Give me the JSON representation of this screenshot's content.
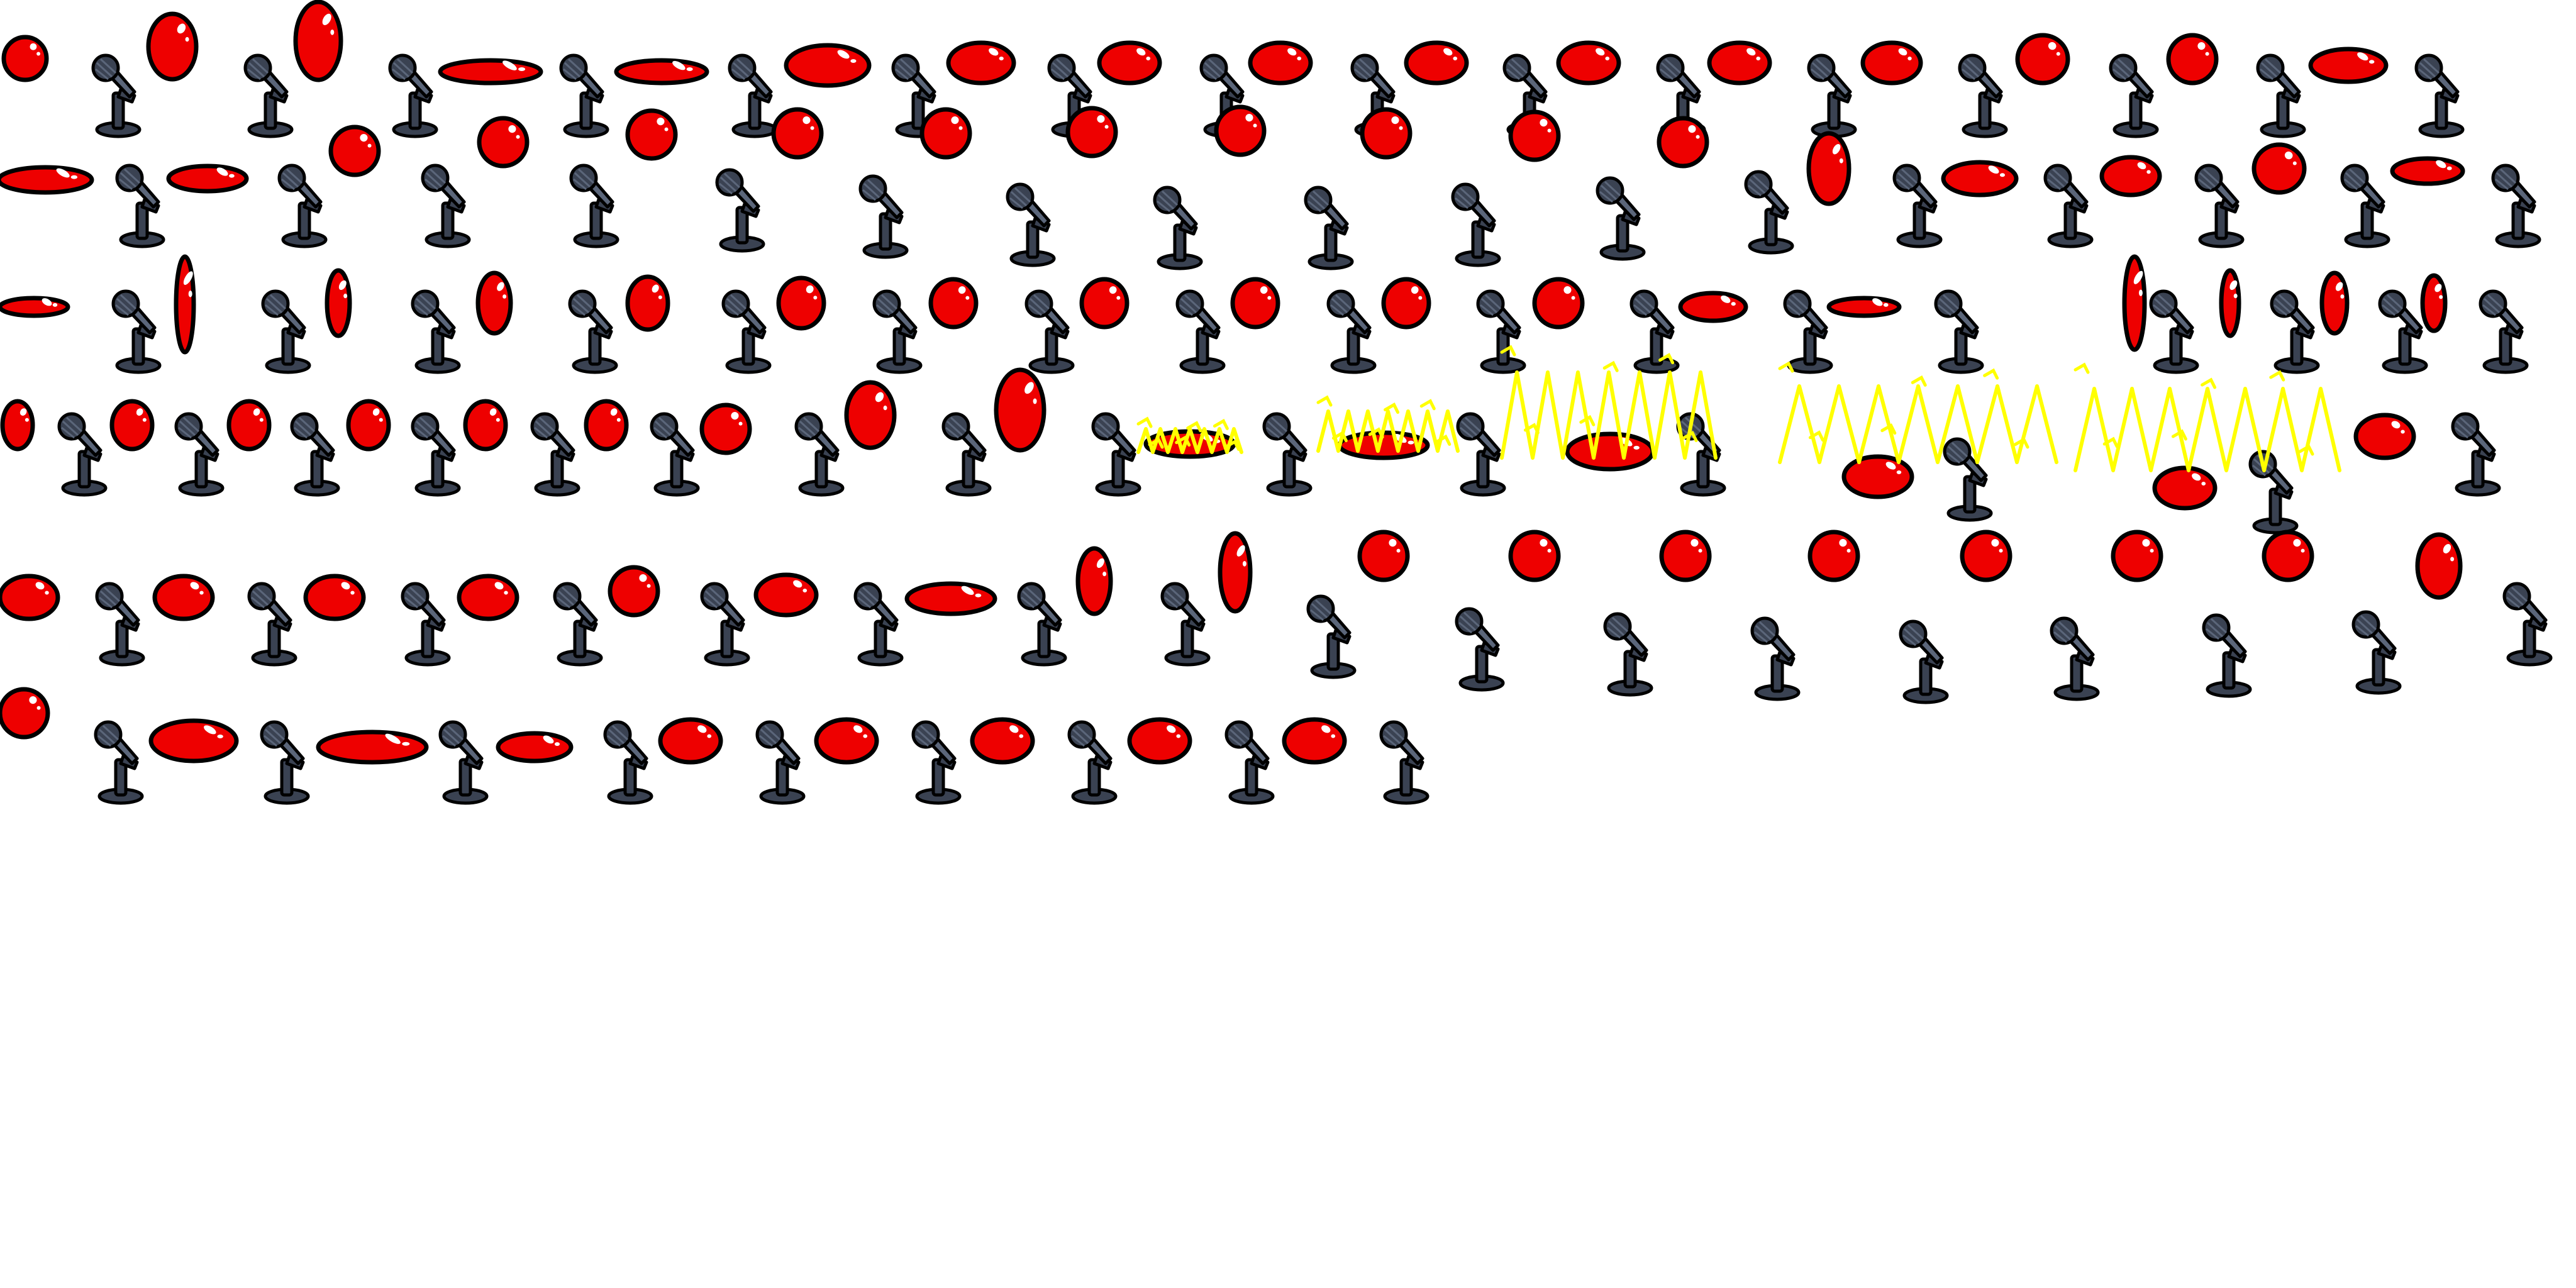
{
  "sheet": {
    "background": "#ffffff",
    "colors": {
      "ball": "#ee0000",
      "outline": "#000000",
      "highlight": "#ffffff",
      "mic_body": "#3a4252",
      "mic_light": "#5b667a",
      "spark": "#ffff00"
    },
    "rows": [
      {
        "frames": [
          {
            "state": "idle"
          },
          {
            "state": "stretch"
          },
          {
            "state": "stretch"
          },
          {
            "state": "squash"
          },
          {
            "state": "squash"
          },
          {
            "state": "idle"
          },
          {
            "state": "idle"
          },
          {
            "state": "idle"
          },
          {
            "state": "idle"
          },
          {
            "state": "idle"
          },
          {
            "state": "idle"
          },
          {
            "state": "idle"
          },
          {
            "state": "idle"
          },
          {
            "state": "idle"
          },
          {
            "state": "idle"
          },
          {
            "state": "idle"
          }
        ]
      },
      {
        "frames": [
          {
            "state": "squash"
          },
          {
            "state": "squash"
          },
          {
            "state": "jump"
          },
          {
            "state": "jump"
          },
          {
            "state": "jump"
          },
          {
            "state": "jump"
          },
          {
            "state": "jump"
          },
          {
            "state": "jump"
          },
          {
            "state": "jump"
          },
          {
            "state": "jump"
          },
          {
            "state": "jump"
          },
          {
            "state": "jump"
          },
          {
            "state": "stretch"
          },
          {
            "state": "squash"
          },
          {
            "state": "idle"
          },
          {
            "state": "idle"
          },
          {
            "state": "squash"
          }
        ]
      },
      {
        "frames": [
          {
            "state": "squash"
          },
          {
            "state": "spin"
          },
          {
            "state": "spin"
          },
          {
            "state": "spin"
          },
          {
            "state": "spin"
          },
          {
            "state": "idle"
          },
          {
            "state": "idle"
          },
          {
            "state": "idle"
          },
          {
            "state": "idle"
          },
          {
            "state": "idle"
          },
          {
            "state": "idle"
          },
          {
            "state": "squash"
          },
          {
            "state": "squash"
          },
          {
            "state": "spin"
          },
          {
            "state": "spin"
          },
          {
            "state": "spin"
          },
          {
            "state": "spin"
          }
        ]
      },
      {
        "frames": [
          {
            "state": "spin"
          },
          {
            "state": "spin"
          },
          {
            "state": "spin"
          },
          {
            "state": "spin"
          },
          {
            "state": "spin"
          },
          {
            "state": "spin"
          },
          {
            "state": "idle"
          },
          {
            "state": "stretch"
          },
          {
            "state": "stretch"
          },
          {
            "state": "zap"
          },
          {
            "state": "zap"
          },
          {
            "state": "zap"
          },
          {
            "state": "zap"
          },
          {
            "state": "zap"
          },
          {
            "state": "idle"
          }
        ]
      },
      {
        "frames": [
          {
            "state": "idle"
          },
          {
            "state": "idle"
          },
          {
            "state": "idle"
          },
          {
            "state": "idle"
          },
          {
            "state": "idle"
          },
          {
            "state": "idle"
          },
          {
            "state": "squash"
          },
          {
            "state": "stretch"
          },
          {
            "state": "stretch"
          },
          {
            "state": "hop"
          },
          {
            "state": "hop"
          },
          {
            "state": "hop"
          },
          {
            "state": "hop"
          },
          {
            "state": "hop"
          },
          {
            "state": "hop"
          },
          {
            "state": "hop"
          },
          {
            "state": "stretch"
          }
        ]
      },
      {
        "frames": [
          {
            "state": "idle"
          },
          {
            "state": "squash"
          },
          {
            "state": "squash"
          },
          {
            "state": "squash"
          },
          {
            "state": "idle"
          },
          {
            "state": "idle"
          },
          {
            "state": "idle"
          },
          {
            "state": "idle"
          },
          {
            "state": "idle"
          }
        ]
      }
    ]
  }
}
